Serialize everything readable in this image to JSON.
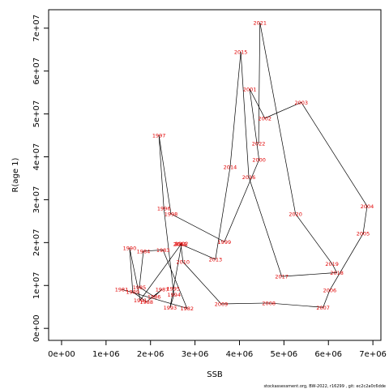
{
  "chart_data": {
    "type": "line",
    "xlabel": "SSB",
    "ylabel": "R(age 1)",
    "footer": "stockassessment.org, BW-2022, r16299 , git: ec2c2a0c6dde",
    "labels": [
      "1981",
      "1982",
      "1983",
      "1984",
      "1985",
      "1986",
      "1987",
      "1988",
      "1989",
      "1990",
      "1991",
      "1992",
      "1993",
      "1994",
      "1995",
      "1996",
      "1997",
      "1998",
      "1999",
      "2000",
      "2001",
      "2002",
      "2003",
      "2004",
      "2005",
      "2006",
      "2007",
      "2008",
      "2009",
      "2010",
      "2011",
      "2012",
      "2013",
      "2014",
      "2015",
      "2016",
      "2017",
      "2018",
      "2019",
      "2020",
      "2021",
      "2022"
    ],
    "x": [
      1350000,
      2820000,
      2280000,
      1840000,
      1750000,
      2080000,
      2260000,
      1910000,
      1600000,
      1530000,
      1770000,
      2700000,
      2440000,
      2530000,
      2510000,
      2300000,
      2190000,
      2460000,
      3660000,
      4440000,
      4230000,
      4570000,
      5390000,
      6870000,
      6780000,
      6030000,
      5880000,
      4660000,
      3590000,
      2730000,
      2680000,
      2660000,
      3460000,
      3790000,
      4030000,
      4210000,
      4950000,
      6190000,
      6080000,
      5260000,
      4460000,
      4430000
    ],
    "series": [
      {
        "name": "R(age 1)",
        "color": "#000000",
        "values": [
          9100000,
          4700000,
          18300000,
          18000000,
          9600000,
          7400000,
          9100000,
          6200000,
          8500000,
          18700000,
          6600000,
          19800000,
          4900000,
          7900000,
          9300000,
          28000000,
          45000000,
          26700000,
          20200000,
          39300000,
          55800000,
          49000000,
          52700000,
          28500000,
          22100000,
          8900000,
          4900000,
          5900000,
          5700000,
          15500000,
          19700000,
          19700000,
          16100000,
          37600000,
          64500000,
          35300000,
          12100000,
          13000000,
          15100000,
          26700000,
          71300000,
          43100000
        ]
      }
    ],
    "xlim": [
      -291000,
      7180000
    ],
    "xticks": [
      {
        "value": 0,
        "label": "0e+00"
      },
      {
        "value": 1000000,
        "label": "1e+06"
      },
      {
        "value": 2000000,
        "label": "2e+06"
      },
      {
        "value": 3000000,
        "label": "3e+06"
      },
      {
        "value": 4000000,
        "label": "4e+06"
      },
      {
        "value": 5000000,
        "label": "5e+06"
      },
      {
        "value": 6000000,
        "label": "6e+06"
      },
      {
        "value": 7000000,
        "label": "7e+06"
      }
    ],
    "ylim": [
      -2800000,
      74300000
    ],
    "yticks": [
      {
        "value": 0,
        "label": "0e+00"
      },
      {
        "value": 10000000,
        "label": "1e+07"
      },
      {
        "value": 20000000,
        "label": "2e+07"
      },
      {
        "value": 30000000,
        "label": "3e+07"
      },
      {
        "value": 40000000,
        "label": "4e+07"
      },
      {
        "value": 50000000,
        "label": "5e+07"
      },
      {
        "value": 60000000,
        "label": "6e+07"
      },
      {
        "value": 70000000,
        "label": "7e+07"
      }
    ]
  }
}
